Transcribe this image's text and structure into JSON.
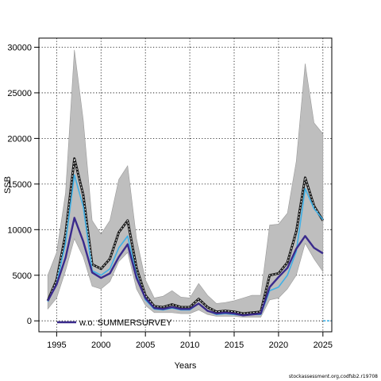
{
  "chart_data": {
    "type": "line",
    "xlabel": "Years",
    "ylabel": "SSB",
    "xlim": [
      1993,
      2026
    ],
    "ylim": [
      -1200,
      31000
    ],
    "x_ticks": [
      1995,
      2000,
      2005,
      2010,
      2015,
      2020,
      2025
    ],
    "y_ticks": [
      0,
      5000,
      10000,
      15000,
      20000,
      25000,
      30000
    ],
    "grid": true,
    "legend_position": "bottom-left",
    "credit": "stockassessment.org,codfsb2.r19708",
    "colors": {
      "band": "#bebebe",
      "band_edge": "#9a9a9a",
      "base": "#1a1a1a",
      "alt": "#3a2a8c",
      "alt2": "#3fb0e6"
    },
    "series": [
      {
        "name": "",
        "role": "confidence-band",
        "x": [
          1994,
          1995,
          1996,
          1997,
          1998,
          1999,
          2000,
          2001,
          2002,
          2003,
          2004,
          2005,
          2006,
          2007,
          2008,
          2009,
          2010,
          2011,
          2012,
          2013,
          2014,
          2015,
          2016,
          2017,
          2018,
          2019,
          2020,
          2021,
          2022,
          2023,
          2024,
          2025
        ],
        "lower": [
          1300,
          2500,
          5500,
          9000,
          7000,
          3800,
          3500,
          4300,
          6500,
          7500,
          3500,
          1700,
          900,
          900,
          900,
          800,
          800,
          1200,
          700,
          500,
          500,
          500,
          400,
          400,
          400,
          2300,
          2500,
          3500,
          5000,
          8500,
          6800,
          5400
        ],
        "upper": [
          5000,
          7500,
          14000,
          29700,
          22000,
          11000,
          9500,
          11000,
          15500,
          17000,
          9000,
          4500,
          2500,
          2700,
          3300,
          2600,
          2500,
          4100,
          2800,
          1900,
          2000,
          2200,
          2500,
          2800,
          2800,
          10500,
          10600,
          11800,
          17500,
          28200,
          21700,
          20500
        ]
      },
      {
        "name": "",
        "role": "base-estimate",
        "x": [
          1994,
          1995,
          1996,
          1997,
          1998,
          1999,
          2000,
          2001,
          2002,
          2003,
          2004,
          2005,
          2006,
          2007,
          2008,
          2009,
          2010,
          2011,
          2012,
          2013,
          2014,
          2015,
          2016,
          2017,
          2018,
          2019,
          2020,
          2021,
          2022,
          2023,
          2024,
          2025
        ],
        "values": [
          2200,
          4500,
          9500,
          17800,
          13800,
          6200,
          5700,
          6800,
          9700,
          11000,
          5800,
          2800,
          1600,
          1500,
          1800,
          1500,
          1500,
          2400,
          1500,
          1000,
          1100,
          1000,
          800,
          900,
          1000,
          5000,
          5200,
          6400,
          9800,
          15700,
          12600,
          11000
        ]
      },
      {
        "name": "",
        "role": "light-blue",
        "x": [
          1994,
          1995,
          1996,
          1997,
          1998,
          1999,
          2000,
          2001,
          2002,
          2003,
          2004,
          2005,
          2006,
          2007,
          2008,
          2009,
          2010,
          2011,
          2012,
          2013,
          2014,
          2015,
          2016,
          2017,
          2018,
          2019,
          2020,
          2021,
          2022,
          2023,
          2024,
          2025
        ],
        "values": [
          2100,
          4100,
          8500,
          16000,
          12500,
          5500,
          5000,
          5700,
          8000,
          9300,
          5000,
          2300,
          1300,
          1200,
          1400,
          1200,
          1200,
          1900,
          1100,
          700,
          800,
          700,
          600,
          700,
          700,
          3300,
          3700,
          5000,
          7600,
          14500,
          12300,
          11100
        ]
      },
      {
        "name": "w.o. SUMMERSURVEY",
        "role": "run",
        "x": [
          1994,
          1995,
          1996,
          1997,
          1998,
          1999,
          2000,
          2001,
          2002,
          2003,
          2004,
          2005,
          2006,
          2007,
          2008,
          2009,
          2010,
          2011,
          2012,
          2013,
          2014,
          2015,
          2016,
          2017,
          2018,
          2019,
          2020,
          2021,
          2022,
          2023,
          2024,
          2025
        ],
        "values": [
          2200,
          4000,
          6900,
          11300,
          8700,
          5300,
          4700,
          5200,
          7000,
          8400,
          4700,
          2500,
          1400,
          1300,
          1500,
          1300,
          1300,
          1900,
          1100,
          800,
          900,
          800,
          600,
          700,
          800,
          3700,
          4800,
          5800,
          7900,
          9300,
          8000,
          7400
        ]
      }
    ]
  }
}
